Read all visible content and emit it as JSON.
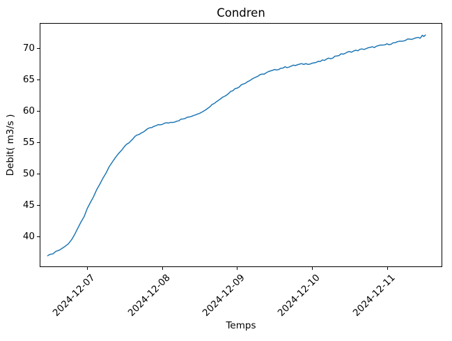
{
  "chart_data": {
    "type": "line",
    "title": "Condren",
    "xlabel": "Temps",
    "ylabel": "Debit( m3/s )",
    "legend": "none",
    "grid": false,
    "line_color": "#1f77b4",
    "line_width": 1.5,
    "noise_amplitude": 0.12,
    "x_tick_rotation_deg": 45,
    "xlim": [
      "2024-12-06T09:00",
      "2024-12-11T17:30"
    ],
    "ylim": [
      35.2,
      73.9
    ],
    "y_ticks": [
      40,
      45,
      50,
      55,
      60,
      65,
      70
    ],
    "x_ticks": [
      {
        "label": "2024-12-07",
        "time": "2024-12-07T00:00"
      },
      {
        "label": "2024-12-08",
        "time": "2024-12-08T00:00"
      },
      {
        "label": "2024-12-09",
        "time": "2024-12-09T00:00"
      },
      {
        "label": "2024-12-10",
        "time": "2024-12-10T00:00"
      },
      {
        "label": "2024-12-11",
        "time": "2024-12-11T00:00"
      }
    ],
    "series": [
      {
        "name": "Debit",
        "points": [
          [
            "2024-12-06T11:20",
            36.9
          ],
          [
            "2024-12-06T12:00",
            37.0
          ],
          [
            "2024-12-06T13:00",
            37.3
          ],
          [
            "2024-12-06T14:00",
            37.6
          ],
          [
            "2024-12-06T15:00",
            37.8
          ],
          [
            "2024-12-06T16:00",
            38.1
          ],
          [
            "2024-12-06T17:00",
            38.4
          ],
          [
            "2024-12-06T18:00",
            38.9
          ],
          [
            "2024-12-06T19:00",
            39.5
          ],
          [
            "2024-12-06T20:00",
            40.3
          ],
          [
            "2024-12-06T21:00",
            41.2
          ],
          [
            "2024-12-06T22:00",
            42.2
          ],
          [
            "2024-12-06T23:00",
            43.2
          ],
          [
            "2024-12-07T00:00",
            44.3
          ],
          [
            "2024-12-07T01:00",
            45.3
          ],
          [
            "2024-12-07T02:00",
            46.3
          ],
          [
            "2024-12-07T03:00",
            47.3
          ],
          [
            "2024-12-07T04:00",
            48.3
          ],
          [
            "2024-12-07T05:00",
            49.2
          ],
          [
            "2024-12-07T06:00",
            50.1
          ],
          [
            "2024-12-07T07:00",
            51.0
          ],
          [
            "2024-12-07T08:00",
            51.8
          ],
          [
            "2024-12-07T09:00",
            52.5
          ],
          [
            "2024-12-07T10:00",
            53.2
          ],
          [
            "2024-12-07T11:00",
            53.8
          ],
          [
            "2024-12-07T12:00",
            54.4
          ],
          [
            "2024-12-07T14:00",
            55.3
          ],
          [
            "2024-12-07T16:00",
            56.1
          ],
          [
            "2024-12-07T18:00",
            56.7
          ],
          [
            "2024-12-07T20:00",
            57.2
          ],
          [
            "2024-12-07T22:00",
            57.6
          ],
          [
            "2024-12-08T00:00",
            57.9
          ],
          [
            "2024-12-08T02:00",
            58.1
          ],
          [
            "2024-12-08T04:00",
            58.3
          ],
          [
            "2024-12-08T06:00",
            58.6
          ],
          [
            "2024-12-08T08:00",
            58.9
          ],
          [
            "2024-12-08T10:00",
            59.3
          ],
          [
            "2024-12-08T12:00",
            59.7
          ],
          [
            "2024-12-08T13:00",
            59.8
          ],
          [
            "2024-12-08T14:00",
            60.3
          ],
          [
            "2024-12-08T16:00",
            61.0
          ],
          [
            "2024-12-08T18:00",
            61.7
          ],
          [
            "2024-12-08T20:00",
            62.4
          ],
          [
            "2024-12-08T22:00",
            63.1
          ],
          [
            "2024-12-09T00:00",
            63.7
          ],
          [
            "2024-12-09T02:00",
            64.3
          ],
          [
            "2024-12-09T04:00",
            64.9
          ],
          [
            "2024-12-09T06:00",
            65.4
          ],
          [
            "2024-12-09T08:00",
            65.8
          ],
          [
            "2024-12-09T10:00",
            66.2
          ],
          [
            "2024-12-09T12:00",
            66.5
          ],
          [
            "2024-12-09T14:00",
            66.8
          ],
          [
            "2024-12-09T16:00",
            67.0
          ],
          [
            "2024-12-09T18:00",
            67.2
          ],
          [
            "2024-12-09T20:00",
            67.4
          ],
          [
            "2024-12-09T22:00",
            67.5
          ],
          [
            "2024-12-10T00:00",
            67.6
          ],
          [
            "2024-12-10T02:00",
            67.8
          ],
          [
            "2024-12-10T04:00",
            68.1
          ],
          [
            "2024-12-10T06:00",
            68.4
          ],
          [
            "2024-12-10T08:00",
            68.8
          ],
          [
            "2024-12-10T10:00",
            69.1
          ],
          [
            "2024-12-10T12:00",
            69.4
          ],
          [
            "2024-12-10T14:00",
            69.6
          ],
          [
            "2024-12-10T16:00",
            69.8
          ],
          [
            "2024-12-10T18:00",
            70.0
          ],
          [
            "2024-12-10T20:00",
            70.2
          ],
          [
            "2024-12-10T22:00",
            70.4
          ],
          [
            "2024-12-11T00:00",
            70.6
          ],
          [
            "2024-12-11T02:00",
            70.8
          ],
          [
            "2024-12-11T04:00",
            71.0
          ],
          [
            "2024-12-11T06:00",
            71.3
          ],
          [
            "2024-12-11T08:00",
            71.5
          ],
          [
            "2024-12-11T09:00",
            71.6
          ],
          [
            "2024-12-11T10:00",
            71.8
          ],
          [
            "2024-12-11T10:40",
            71.6
          ],
          [
            "2024-12-11T11:20",
            72.0
          ],
          [
            "2024-12-11T11:50",
            71.8
          ],
          [
            "2024-12-11T12:20",
            72.1
          ]
        ]
      }
    ]
  }
}
